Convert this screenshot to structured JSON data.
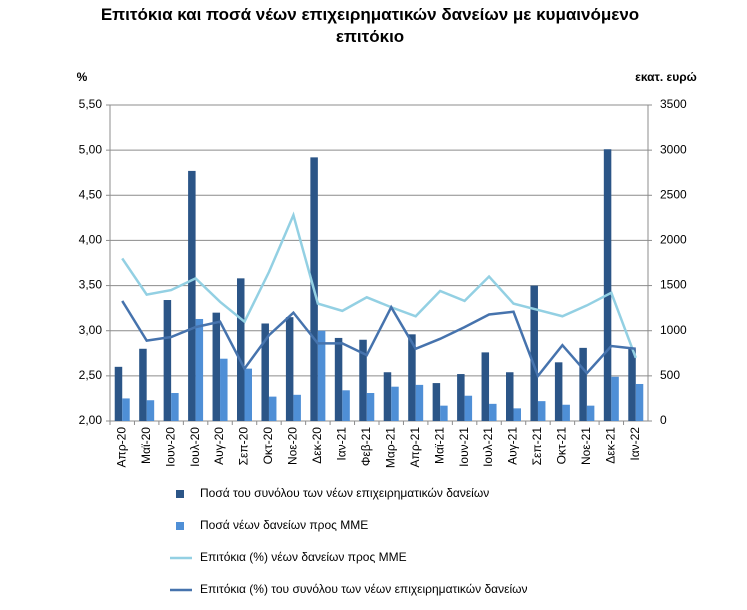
{
  "chart_data": {
    "type": "combo",
    "title": "Επιτόκια και ποσά νέων επιχειρηματικών δανείων με κυμαινόμενο επιτόκιο",
    "y_label": "%",
    "y2_label": "εκατ. ευρώ",
    "categories": [
      "Απρ-20",
      "Μαϊ-20",
      "Ιουν-20",
      "Ιουλ-20",
      "Αυγ-20",
      "Σεπ-20",
      "Οκτ-20",
      "Νοε-20",
      "Δεκ-20",
      "Ιαν-21",
      "Φεβ-21",
      "Μαρ-21",
      "Απρ-21",
      "Μαϊ-21",
      "Ιουν-21",
      "Ιουλ-21",
      "Αυγ-21",
      "Σεπ-21",
      "Οκτ-21",
      "Νοε-21",
      "Δεκ-21",
      "Ιαν-22"
    ],
    "ylim": [
      2,
      5.5
    ],
    "yticks": [
      {
        "value": 2,
        "label": "2,00"
      },
      {
        "value": 2.5,
        "label": "2,50"
      },
      {
        "value": 3,
        "label": "3,00"
      },
      {
        "value": 3.5,
        "label": "3,50"
      },
      {
        "value": 4,
        "label": "4,00"
      },
      {
        "value": 4.5,
        "label": "4,50"
      },
      {
        "value": 5,
        "label": "5,00"
      },
      {
        "value": 5.5,
        "label": "5,50"
      }
    ],
    "y2lim": [
      0,
      3500
    ],
    "y2ticks": [
      0,
      500,
      1000,
      1500,
      2000,
      2500,
      3000,
      3500
    ],
    "grid": true,
    "series": [
      {
        "name": "Ποσά του συνόλου των νέων επιχειρηματικών δανείων",
        "type": "bar",
        "axis": "y2",
        "color": "#2b5587",
        "values": [
          600,
          800,
          1340,
          2770,
          1200,
          1580,
          1080,
          1150,
          2920,
          920,
          900,
          540,
          960,
          420,
          520,
          760,
          540,
          1500,
          650,
          810,
          3010,
          800
        ]
      },
      {
        "name": "Ποσά νέων δανείων προς ΜΜΕ",
        "type": "bar",
        "axis": "y2",
        "color": "#4f8fd6",
        "values": [
          250,
          230,
          310,
          1130,
          690,
          580,
          270,
          290,
          1000,
          340,
          310,
          380,
          400,
          170,
          280,
          190,
          140,
          220,
          180,
          170,
          490,
          410
        ]
      },
      {
        "name": "Επιτόκια (%) νέων δανείων προς ΜΜΕ",
        "type": "line",
        "color": "#93d0e3",
        "values": [
          3.8,
          3.4,
          3.45,
          3.58,
          3.32,
          3.1,
          3.65,
          4.28,
          3.3,
          3.22,
          3.37,
          3.26,
          3.16,
          3.44,
          3.33,
          3.6,
          3.3,
          3.23,
          3.16,
          3.28,
          3.42,
          2.7
        ]
      },
      {
        "name": "Επιτόκια (%) του συνόλου των νέων επιχειρηματικών δανείων",
        "type": "line",
        "color": "#4673ad",
        "values": [
          3.33,
          2.89,
          2.93,
          3.04,
          3.1,
          2.58,
          2.95,
          3.2,
          2.86,
          2.86,
          2.73,
          3.26,
          2.8,
          2.91,
          3.04,
          3.18,
          3.21,
          2.5,
          2.84,
          2.53,
          2.83,
          2.8
        ]
      }
    ]
  }
}
